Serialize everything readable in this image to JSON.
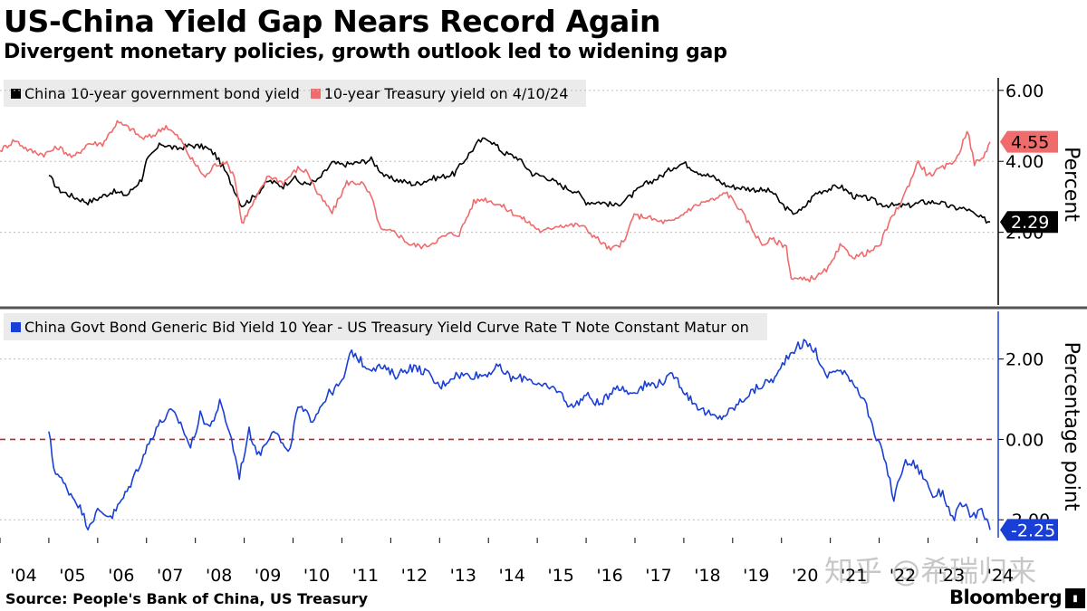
{
  "header": {
    "title": "US-China Yield Gap Nears Record Again",
    "subtitle": "Divergent monetary policies, growth outlook led to widening gap"
  },
  "footer": {
    "source": "Source: People's Bank of China, US Treasury",
    "brand": "Bloomberg",
    "watermark": "知乎 @希瑞归来"
  },
  "colors": {
    "china": "#000000",
    "us": "#f06b6b",
    "spread": "#1a3fd6",
    "zero_line": "#c0272d",
    "legend_bg": "#ebebeb"
  },
  "chart_data": [
    {
      "type": "line",
      "ylabel": "Percent",
      "ylim": [
        0,
        6.2
      ],
      "yticks": [
        "6.00",
        "4.00",
        "2.00"
      ],
      "ytick_values": [
        6,
        4,
        2
      ],
      "xlim": [
        2004,
        2024.4
      ],
      "xtick_labels": [
        "'04",
        "'05",
        "'06",
        "'07",
        "'08",
        "'09",
        "'10",
        "'11",
        "'12",
        "'13",
        "'14",
        "'15",
        "'16",
        "'17",
        "'18",
        "'19",
        "'20",
        "'21",
        "'22",
        "'23",
        "'24"
      ],
      "xtick_values": [
        2004,
        2005,
        2006,
        2007,
        2008,
        2009,
        2010,
        2011,
        2012,
        2013,
        2014,
        2015,
        2016,
        2017,
        2018,
        2019,
        2020,
        2021,
        2022,
        2023,
        2024
      ],
      "series": [
        {
          "name": "China 10-year government bond yield",
          "color": "#000000",
          "last_label": "2.29",
          "x": [
            2005.0,
            2005.2,
            2005.5,
            2005.8,
            2006.0,
            2006.3,
            2006.6,
            2006.9,
            2007.0,
            2007.3,
            2007.6,
            2007.9,
            2008.2,
            2008.4,
            2008.6,
            2008.8,
            2008.95,
            2009.2,
            2009.5,
            2009.8,
            2010.0,
            2010.2,
            2010.5,
            2010.8,
            2011.0,
            2011.3,
            2011.6,
            2011.9,
            2012.2,
            2012.5,
            2012.8,
            2013.0,
            2013.3,
            2013.6,
            2013.8,
            2014.0,
            2014.3,
            2014.6,
            2014.9,
            2015.2,
            2015.5,
            2015.8,
            2016.0,
            2016.3,
            2016.6,
            2016.9,
            2017.2,
            2017.5,
            2017.8,
            2018.0,
            2018.3,
            2018.6,
            2018.9,
            2019.2,
            2019.5,
            2019.8,
            2020.0,
            2020.2,
            2020.4,
            2020.7,
            2020.9,
            2021.2,
            2021.5,
            2021.8,
            2022.0,
            2022.3,
            2022.6,
            2022.9,
            2023.2,
            2023.5,
            2023.8,
            2024.0,
            2024.27
          ],
          "values": [
            3.6,
            3.2,
            3.0,
            2.85,
            2.95,
            3.15,
            3.05,
            3.5,
            4.0,
            4.5,
            4.35,
            4.45,
            4.4,
            4.2,
            3.75,
            3.2,
            2.75,
            3.0,
            3.45,
            3.3,
            3.55,
            3.35,
            3.45,
            3.95,
            3.9,
            3.95,
            4.05,
            3.55,
            3.45,
            3.35,
            3.5,
            3.55,
            3.65,
            4.2,
            4.55,
            4.65,
            4.25,
            4.1,
            3.65,
            3.55,
            3.3,
            3.15,
            2.85,
            2.85,
            2.75,
            3.0,
            3.35,
            3.55,
            3.85,
            3.95,
            3.7,
            3.55,
            3.3,
            3.25,
            3.2,
            3.15,
            2.8,
            2.55,
            2.6,
            3.1,
            3.2,
            3.3,
            3.0,
            2.95,
            2.8,
            2.75,
            2.75,
            2.85,
            2.85,
            2.7,
            2.65,
            2.45,
            2.29
          ]
        },
        {
          "name": "10-year Treasury yield on 4/10/24",
          "color": "#f06b6b",
          "last_label": "4.55",
          "x": [
            2004.0,
            2004.3,
            2004.6,
            2004.9,
            2005.2,
            2005.5,
            2005.8,
            2006.1,
            2006.4,
            2006.7,
            2006.9,
            2007.1,
            2007.4,
            2007.7,
            2007.9,
            2008.2,
            2008.4,
            2008.6,
            2008.8,
            2008.95,
            2009.2,
            2009.5,
            2009.8,
            2010.1,
            2010.3,
            2010.5,
            2010.8,
            2011.1,
            2011.4,
            2011.6,
            2011.8,
            2012.1,
            2012.4,
            2012.7,
            2012.9,
            2013.2,
            2013.4,
            2013.7,
            2013.9,
            2014.2,
            2014.5,
            2014.8,
            2015.1,
            2015.4,
            2015.7,
            2015.9,
            2016.2,
            2016.5,
            2016.8,
            2016.95,
            2017.2,
            2017.5,
            2017.8,
            2018.1,
            2018.4,
            2018.7,
            2018.85,
            2019.1,
            2019.4,
            2019.6,
            2019.8,
            2020.1,
            2020.2,
            2020.5,
            2020.8,
            2021.0,
            2021.2,
            2021.5,
            2021.8,
            2022.0,
            2022.2,
            2022.5,
            2022.8,
            2023.0,
            2023.3,
            2023.6,
            2023.8,
            2023.95,
            2024.1,
            2024.27
          ],
          "values": [
            4.3,
            4.6,
            4.3,
            4.2,
            4.4,
            4.1,
            4.5,
            4.5,
            5.1,
            4.9,
            4.65,
            4.7,
            5.0,
            4.6,
            4.1,
            3.55,
            3.9,
            4.0,
            3.6,
            2.25,
            2.85,
            3.6,
            3.4,
            3.8,
            3.7,
            3.1,
            2.55,
            3.4,
            3.4,
            3.0,
            2.05,
            2.0,
            1.65,
            1.6,
            1.75,
            1.95,
            1.95,
            2.85,
            2.95,
            2.8,
            2.55,
            2.3,
            2.0,
            2.2,
            2.2,
            2.2,
            1.85,
            1.5,
            1.75,
            2.45,
            2.45,
            2.3,
            2.3,
            2.65,
            2.85,
            2.95,
            3.15,
            2.75,
            2.1,
            1.65,
            1.8,
            1.6,
            0.7,
            0.65,
            0.8,
            1.05,
            1.6,
            1.3,
            1.45,
            1.6,
            2.25,
            3.0,
            4.0,
            3.6,
            3.8,
            4.1,
            4.9,
            3.95,
            4.05,
            4.55
          ]
        }
      ]
    },
    {
      "type": "line",
      "ylabel": "Percentage point",
      "ylim": [
        -2.4,
        3.05
      ],
      "yticks": [
        "2.00",
        "0.00",
        "-2.00"
      ],
      "ytick_values": [
        2,
        0,
        -2
      ],
      "xlim": [
        2004,
        2024.4
      ],
      "reference_line": 0,
      "series": [
        {
          "name": "China Govt Bond Generic Bid Yield 10 Year - US Treasury Yield Curve Rate T Note Constant Matur on",
          "color": "#1a3fd6",
          "last_label": "-2.25",
          "x": [
            2005.0,
            2005.1,
            2005.3,
            2005.6,
            2005.8,
            2006.0,
            2006.3,
            2006.6,
            2006.9,
            2007.2,
            2007.5,
            2007.7,
            2007.9,
            2008.1,
            2008.3,
            2008.5,
            2008.7,
            2008.9,
            2009.1,
            2009.3,
            2009.6,
            2009.9,
            2010.1,
            2010.4,
            2010.7,
            2011.0,
            2011.2,
            2011.5,
            2011.8,
            2012.1,
            2012.4,
            2012.7,
            2013.0,
            2013.3,
            2013.6,
            2013.9,
            2014.2,
            2014.5,
            2014.8,
            2015.1,
            2015.4,
            2015.7,
            2016.0,
            2016.3,
            2016.6,
            2016.9,
            2017.2,
            2017.5,
            2017.8,
            2018.1,
            2018.4,
            2018.7,
            2019.0,
            2019.3,
            2019.6,
            2019.9,
            2020.1,
            2020.3,
            2020.5,
            2020.7,
            2020.9,
            2021.1,
            2021.4,
            2021.7,
            2021.9,
            2022.1,
            2022.3,
            2022.5,
            2022.7,
            2022.9,
            2023.1,
            2023.3,
            2023.5,
            2023.7,
            2023.9,
            2024.1,
            2024.27
          ],
          "values": [
            0.2,
            -0.7,
            -1.1,
            -1.6,
            -2.15,
            -1.8,
            -1.9,
            -1.3,
            -0.5,
            0.3,
            0.7,
            0.4,
            -0.2,
            0.6,
            0.3,
            0.9,
            0.2,
            -0.9,
            0.2,
            -0.4,
            0.3,
            -0.4,
            0.8,
            0.5,
            1.1,
            1.4,
            2.2,
            1.8,
            1.8,
            1.6,
            1.8,
            1.7,
            1.3,
            1.6,
            1.6,
            1.6,
            1.8,
            1.5,
            1.55,
            1.3,
            1.25,
            0.8,
            1.1,
            0.85,
            1.35,
            1.15,
            1.35,
            1.4,
            1.6,
            1.05,
            0.7,
            0.5,
            0.75,
            1.1,
            1.35,
            1.55,
            2.05,
            2.3,
            2.4,
            2.2,
            1.55,
            1.75,
            1.55,
            1.0,
            0.1,
            -0.4,
            -1.5,
            -0.6,
            -0.6,
            -0.9,
            -1.4,
            -1.3,
            -2.0,
            -1.6,
            -1.9,
            -1.8,
            -2.25
          ]
        }
      ]
    }
  ]
}
